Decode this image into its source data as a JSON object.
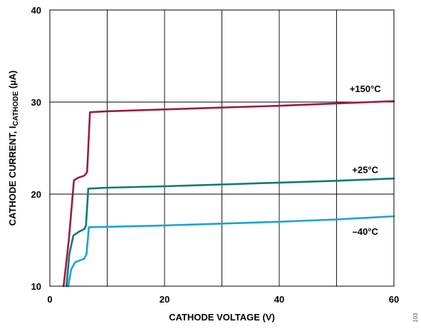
{
  "chart_data": {
    "type": "line",
    "title": "",
    "xlabel": "CATHODE VOLTAGE (V)",
    "ylabel": {
      "main": "CATHODE CURRENT, I",
      "subscript": "CATHODE",
      "unit": " (µA)"
    },
    "xlim": [
      0,
      60
    ],
    "ylim": [
      10,
      40
    ],
    "xticks": [
      "0",
      "20",
      "40",
      "60"
    ],
    "yticks": [
      "10",
      "20",
      "30",
      "40"
    ],
    "x_grid_values": [
      0,
      10,
      20,
      30,
      40,
      50,
      60
    ],
    "y_grid_values": [
      10,
      20,
      30,
      40
    ],
    "grid": true,
    "figure_id": "103",
    "series": [
      {
        "name": "+150°C",
        "color": "#9a1a4a",
        "label_at": [
          55,
          31.1
        ],
        "x": [
          2.4,
          3.3,
          4.2,
          5.0,
          6.0,
          6.5,
          7.0,
          10,
          20,
          30,
          40,
          50,
          60
        ],
        "y": [
          10,
          15.0,
          21.5,
          21.8,
          22.0,
          22.4,
          28.9,
          29.0,
          29.2,
          29.4,
          29.6,
          29.85,
          30.1
        ]
      },
      {
        "name": "+25°C",
        "color": "#0e7a6e",
        "label_at": [
          55,
          22.3
        ],
        "x": [
          2.9,
          3.4,
          4.1,
          5.0,
          6.0,
          6.3,
          6.7,
          10,
          20,
          30,
          40,
          50,
          60
        ],
        "y": [
          10,
          13.5,
          15.5,
          15.9,
          16.2,
          16.6,
          20.6,
          20.7,
          20.85,
          21.05,
          21.25,
          21.45,
          21.7
        ]
      },
      {
        "name": "–40°C",
        "color": "#1ea2d2",
        "label_at": [
          55,
          15.6
        ],
        "x": [
          3.2,
          3.7,
          4.4,
          5.2,
          6.0,
          6.4,
          6.8,
          10,
          20,
          30,
          40,
          50,
          60
        ],
        "y": [
          10,
          11.8,
          12.6,
          12.8,
          13.0,
          13.5,
          16.4,
          16.45,
          16.6,
          16.8,
          17.0,
          17.25,
          17.6
        ]
      }
    ]
  }
}
